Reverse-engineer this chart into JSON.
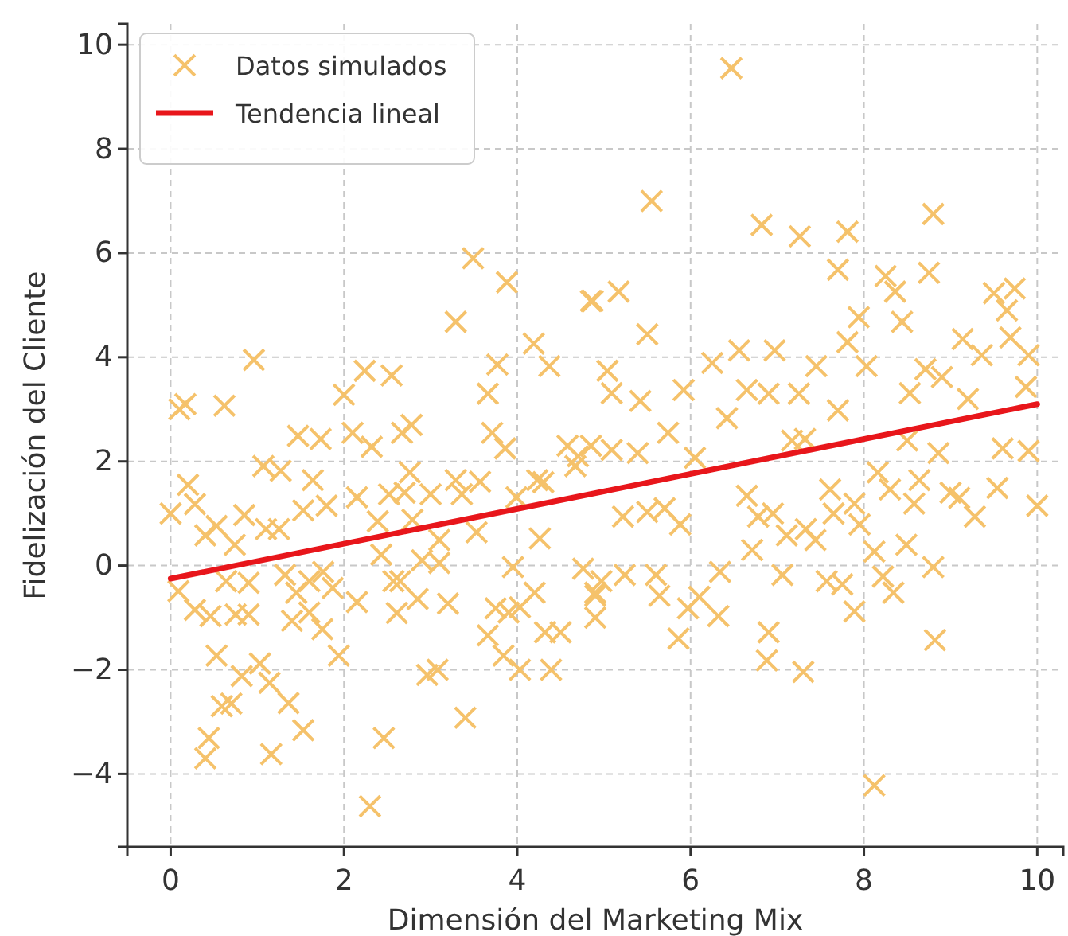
{
  "chart_data": {
    "type": "scatter",
    "xlabel": "Dimensión del Marketing Mix",
    "ylabel": "Fidelización del Cliente",
    "xlim": [
      -0.5,
      10.3
    ],
    "ylim": [
      -5.4,
      10.4
    ],
    "xticks": [
      0,
      2,
      4,
      6,
      8,
      10
    ],
    "yticks": [
      -4,
      -2,
      0,
      2,
      4,
      6,
      8,
      10
    ],
    "grid": true,
    "legend": "top left",
    "series": [
      {
        "name": "Datos simulados",
        "marker": "cross",
        "color": "#f5c26b",
        "x": [
          6.47,
          5.55,
          6.82,
          7.26,
          7.81,
          8.8,
          7.7,
          8.25,
          8.36,
          8.75,
          8.44,
          9.5,
          9.74,
          9.65,
          5.17,
          4.87,
          5.5,
          7.94,
          3.49,
          3.88,
          3.29,
          4.85,
          4.19,
          0.96,
          0.17,
          0.1,
          0.62,
          2.24,
          2.55,
          2.0,
          3.66,
          3.77,
          4.37,
          0,
          0.2,
          0.28,
          0.4,
          0.53,
          0.85,
          0.74,
          1.1,
          1.25,
          1.07,
          1.27,
          1.53,
          1.64,
          1.8,
          1.47,
          1.73,
          2.1,
          2.32,
          2.67,
          2.78,
          2.15,
          2.52,
          2.7,
          3.0,
          2.76,
          3.29,
          3.36,
          3.57,
          3.71,
          3.86,
          2.39,
          2.79,
          3.1,
          3.53,
          3.99,
          4.26,
          4.23,
          4.3,
          4.67,
          4.58,
          4.7,
          4.85,
          0.09,
          0.28,
          0.46,
          0.64,
          0.9,
          0.75,
          0.9,
          1.32,
          1.45,
          1.6,
          1.76,
          1.87,
          1.4,
          1.6,
          1.75,
          2.15,
          2.57,
          2.65,
          2.61,
          2.85,
          3.2,
          2.43,
          2.9,
          3.1,
          3.95,
          3.75,
          3.9,
          4.03,
          4.2,
          4.32,
          4.5,
          4.76,
          4.9,
          4.9,
          0.53,
          0.82,
          1.03,
          1.14,
          1.36,
          0.59,
          0.7,
          0.44,
          0.4,
          1.16,
          1.53,
          1.94,
          2.46,
          2.3,
          2.96,
          3.08,
          3.4,
          3.66,
          3.84,
          4.03,
          4.39,
          5.22,
          5.5,
          5.7,
          5.88,
          5.39,
          5.09,
          5.74,
          6.05,
          6.65,
          6.78,
          6.95,
          7.11,
          7.33,
          7.44,
          6.71,
          7.17,
          7.32,
          7.61,
          7.65,
          7.89,
          7.95,
          8.12,
          8.16,
          8.3,
          8.49,
          8.58,
          8.64,
          9.0,
          9.1,
          9.28,
          9.54,
          10.0,
          8.86,
          9.6,
          9.9,
          8.5,
          4.9,
          4.97,
          5.24,
          5.6,
          5.64,
          5.97,
          6.1,
          6.34,
          6.32,
          5.86,
          7.06,
          7.57,
          7.75,
          7.89,
          8.22,
          8.34,
          8.8,
          6.9,
          6.88,
          7.3,
          8.82,
          8.12,
          6.25,
          6.56,
          6.97,
          7.45,
          7.81,
          8.03,
          8.71,
          9.14,
          9.36,
          9.69,
          9.9,
          5.04,
          5.09,
          5.42,
          5.92,
          6.65,
          6.9,
          7.25,
          7.7,
          8.53,
          8.9,
          9.2,
          9.87,
          6.42
        ],
        "values": [
          9.55,
          7.0,
          6.54,
          6.32,
          6.41,
          6.75,
          5.68,
          5.56,
          5.26,
          5.62,
          4.68,
          5.23,
          5.32,
          4.9,
          5.26,
          5.08,
          4.44,
          4.77,
          5.9,
          5.44,
          4.68,
          5.08,
          4.26,
          3.95,
          3.1,
          3.0,
          3.07,
          3.74,
          3.65,
          3.28,
          3.3,
          3.86,
          3.83,
          1.0,
          1.55,
          1.18,
          0.58,
          0.76,
          0.97,
          0.4,
          0.7,
          0.7,
          1.91,
          1.82,
          1.06,
          1.64,
          1.15,
          2.49,
          2.43,
          2.55,
          2.28,
          2.55,
          2.7,
          1.31,
          1.37,
          1.4,
          1.37,
          1.79,
          1.64,
          1.37,
          1.61,
          2.55,
          2.25,
          0.85,
          0.88,
          0.49,
          0.64,
          1.31,
          0.52,
          1.64,
          1.6,
          1.91,
          2.3,
          2.1,
          2.3,
          -0.49,
          -0.85,
          -0.97,
          -0.3,
          -0.33,
          -0.94,
          -0.94,
          -0.18,
          -0.52,
          -0.3,
          -0.12,
          -0.43,
          -1.06,
          -0.9,
          -1.22,
          -0.7,
          -0.3,
          -0.3,
          -0.91,
          -0.64,
          -0.73,
          0.21,
          0.1,
          0.05,
          -0.03,
          -0.82,
          -0.9,
          -0.8,
          -0.52,
          -1.28,
          -1.28,
          -0.06,
          -0.52,
          -1.0,
          -1.73,
          -2.12,
          -1.88,
          -2.25,
          -2.64,
          -2.7,
          -2.65,
          -3.31,
          -3.7,
          -3.62,
          -3.16,
          -1.73,
          -3.31,
          -4.62,
          -2.1,
          -2.0,
          -2.92,
          -1.34,
          -1.73,
          -2.0,
          -2.0,
          0.94,
          1.03,
          1.1,
          0.79,
          2.16,
          2.22,
          2.55,
          2.07,
          1.34,
          0.94,
          1.0,
          0.58,
          0.7,
          0.49,
          0.3,
          2.4,
          2.43,
          1.46,
          1.0,
          1.19,
          0.79,
          0.27,
          1.79,
          1.46,
          0.4,
          1.19,
          1.64,
          1.4,
          1.3,
          0.94,
          1.49,
          1.15,
          2.16,
          2.25,
          2.2,
          2.4,
          -0.58,
          -0.3,
          -0.18,
          -0.18,
          -0.58,
          -0.82,
          -0.6,
          -0.12,
          -0.97,
          -1.4,
          -0.18,
          -0.3,
          -0.36,
          -0.88,
          -0.21,
          -0.52,
          -0.03,
          -1.28,
          -1.82,
          -2.04,
          -1.43,
          -4.22,
          3.89,
          4.13,
          4.13,
          3.83,
          4.29,
          3.83,
          3.77,
          4.35,
          4.04,
          4.38,
          4.04,
          3.74,
          3.31,
          3.16,
          3.37,
          3.37,
          3.3,
          3.3,
          2.98,
          3.31,
          3.62,
          3.2,
          3.43,
          2.83
        ]
      },
      {
        "name": "Tendencia lineal",
        "type": "line",
        "line_style": "solid",
        "color": "#e8161b",
        "x": [
          0,
          10
        ],
        "values": [
          -0.25,
          3.1
        ]
      }
    ]
  }
}
